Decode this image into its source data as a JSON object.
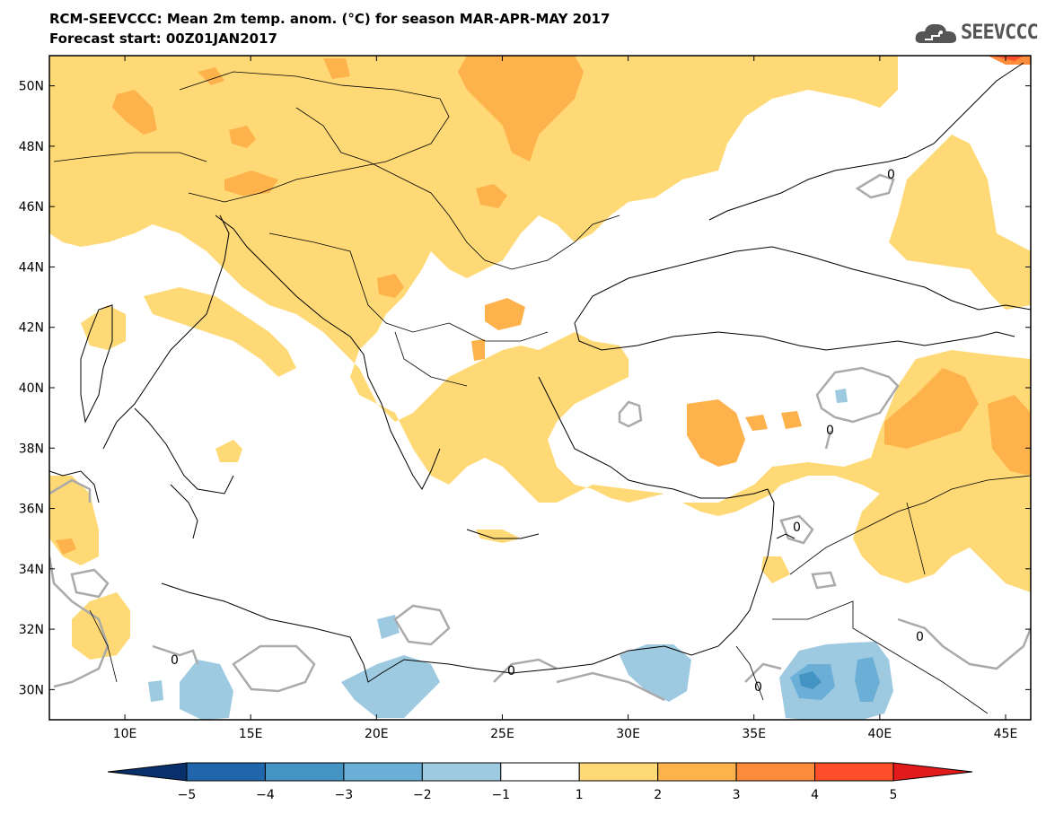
{
  "title": {
    "line1": "RCM-SEEVCCC: Mean 2m temp. anom. (°C) for season MAR-APR-MAY 2017",
    "line2": "Forecast start: 00Z01JAN2017"
  },
  "logo": {
    "text": "SEEVCCC",
    "icon": "cloud-icon"
  },
  "axes": {
    "lon_labels": [
      "10E",
      "15E",
      "20E",
      "25E",
      "30E",
      "35E",
      "40E",
      "45E"
    ],
    "lon_values": [
      10,
      15,
      20,
      25,
      30,
      35,
      40,
      45
    ],
    "lat_labels": [
      "30N",
      "32N",
      "34N",
      "36N",
      "38N",
      "40N",
      "42N",
      "44N",
      "46N",
      "48N",
      "50N"
    ],
    "lat_values": [
      30,
      32,
      34,
      36,
      38,
      40,
      42,
      44,
      46,
      48,
      50
    ],
    "lon_range": [
      7,
      46
    ],
    "lat_range": [
      29,
      51
    ]
  },
  "contour_labels": [
    "0",
    "0",
    "0",
    "0",
    "0",
    "0",
    "0"
  ],
  "colorbar": {
    "labels": [
      "−5",
      "−4",
      "−3",
      "−2",
      "−1",
      "1",
      "2",
      "3",
      "4",
      "5"
    ],
    "colors": [
      "#08306b",
      "#2166ac",
      "#4393c3",
      "#6baed6",
      "#9ecae1",
      "#ffffff",
      "#fed976",
      "#feb24c",
      "#fd8d3c",
      "#fc4e2a",
      "#e31a1c"
    ]
  },
  "colors": {
    "anom_1_2": "#fed976",
    "anom_2_3": "#feb24c",
    "anom_3_4": "#fd8d3c",
    "anom_4_5": "#fc4e2a",
    "anom_m1_m2": "#9ecae1",
    "anom_m2_m3": "#6baed6",
    "anom_m3_m4": "#4393c3",
    "contour_zero": "#aaaaaa"
  }
}
